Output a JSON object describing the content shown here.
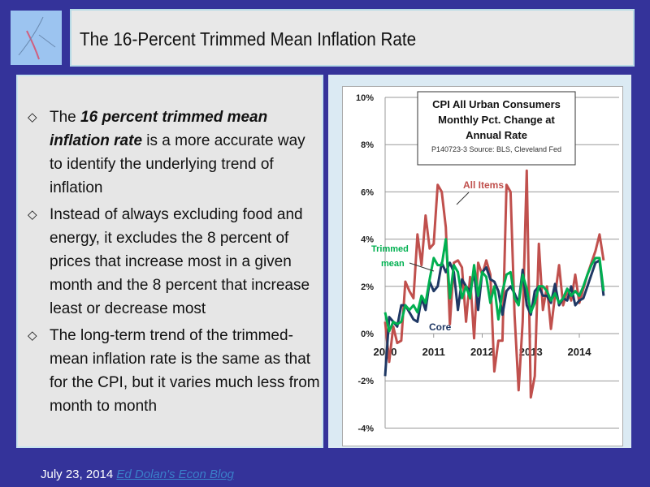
{
  "slide": {
    "title": "The 16-Percent Trimmed Mean Inflation Rate",
    "bullets": [
      {
        "pre": "The ",
        "em": "16 percent trimmed mean inflation rate",
        "post": " is a more accurate way to identify the underlying trend of inflation"
      },
      {
        "pre": "Instead of always excluding food and energy, it excludes the 8 percent of prices that increase most in a given month and the 8 percent that increase least or decrease most",
        "em": "",
        "post": ""
      },
      {
        "pre": "The long-term trend of the trimmed-mean inflation rate is the same as that for the CPI, but it varies much less from month to month",
        "em": "",
        "post": ""
      }
    ],
    "footer_date": "July 23, 2014",
    "footer_link": "Ed Dolan's Econ Blog",
    "bullet_icon": "hollow-diamond"
  },
  "chart_data": {
    "type": "line",
    "title_lines": [
      "CPI All Urban Consumers",
      "Monthly Pct. Change at",
      "Annual Rate"
    ],
    "source": "P140723-3 Source: BLS,  Cleveland Fed",
    "yticks": [
      "10%",
      "8%",
      "6%",
      "4%",
      "2%",
      "0%",
      "-2%",
      "-4%"
    ],
    "ylim": [
      -4,
      10
    ],
    "xticks": [
      "2010",
      "2011",
      "2012",
      "2013",
      "2014"
    ],
    "x_start": "2010-01",
    "frequency": "monthly",
    "grid": "horizontal",
    "series": [
      {
        "name": "All Items",
        "color": "#c0504d",
        "values": [
          0.5,
          -1.2,
          0.3,
          -0.4,
          -0.3,
          2.2,
          1.8,
          1.5,
          4.2,
          2.9,
          5.0,
          3.6,
          3.8,
          6.3,
          6.0,
          4.5,
          0.4,
          3.0,
          3.1,
          2.8,
          0.5,
          2.4,
          -0.2,
          3.0,
          2.5,
          3.1,
          2.5,
          -1.6,
          -0.3,
          -0.3,
          6.3,
          6.0,
          0.8,
          -2.4,
          0.5,
          6.9,
          -2.7,
          -1.8,
          3.8,
          1.0,
          2.0,
          0.2,
          1.6,
          2.9,
          1.2,
          1.8,
          1.4,
          2.5,
          1.3,
          1.9,
          2.5,
          3.0,
          3.5,
          4.2,
          3.1
        ]
      },
      {
        "name": "Core",
        "color": "#1f3864",
        "values": [
          -1.8,
          0.7,
          0.5,
          0.3,
          1.2,
          1.2,
          0.9,
          0.6,
          0.5,
          1.5,
          1.0,
          2.2,
          1.8,
          2.0,
          3.0,
          2.6,
          3.0,
          2.6,
          1.0,
          2.3,
          2.0,
          1.8,
          2.6,
          1.0,
          2.6,
          2.8,
          2.3,
          2.2,
          1.8,
          0.8,
          1.8,
          2.0,
          1.7,
          1.3,
          2.7,
          1.2,
          0.8,
          1.8,
          2.0,
          1.6,
          1.6,
          1.3,
          2.1,
          1.2,
          1.5,
          1.4,
          2.0,
          1.2,
          1.4,
          1.5,
          2.0,
          2.5,
          3.0,
          3.1,
          1.6
        ]
      },
      {
        "name": "Trimmed mean",
        "color": "#00b050",
        "values": [
          0.9,
          0.1,
          0.5,
          0.4,
          0.5,
          1.2,
          1.0,
          1.2,
          0.9,
          1.6,
          1.3,
          2.3,
          3.2,
          2.9,
          2.9,
          4.0,
          1.5,
          2.9,
          2.6,
          1.5,
          2.0,
          1.5,
          2.9,
          1.6,
          2.6,
          2.4,
          1.3,
          2.0,
          0.6,
          1.8,
          2.5,
          2.6,
          1.5,
          1.2,
          2.5,
          1.9,
          0.9,
          1.3,
          2.0,
          2.0,
          1.8,
          1.4,
          1.7,
          1.3,
          1.5,
          1.9,
          1.6,
          1.8,
          1.6,
          2.0,
          2.5,
          2.9,
          3.2,
          3.2,
          1.8
        ]
      }
    ],
    "annotations": [
      "All Items",
      "Trimmed",
      "mean",
      "Core"
    ]
  }
}
